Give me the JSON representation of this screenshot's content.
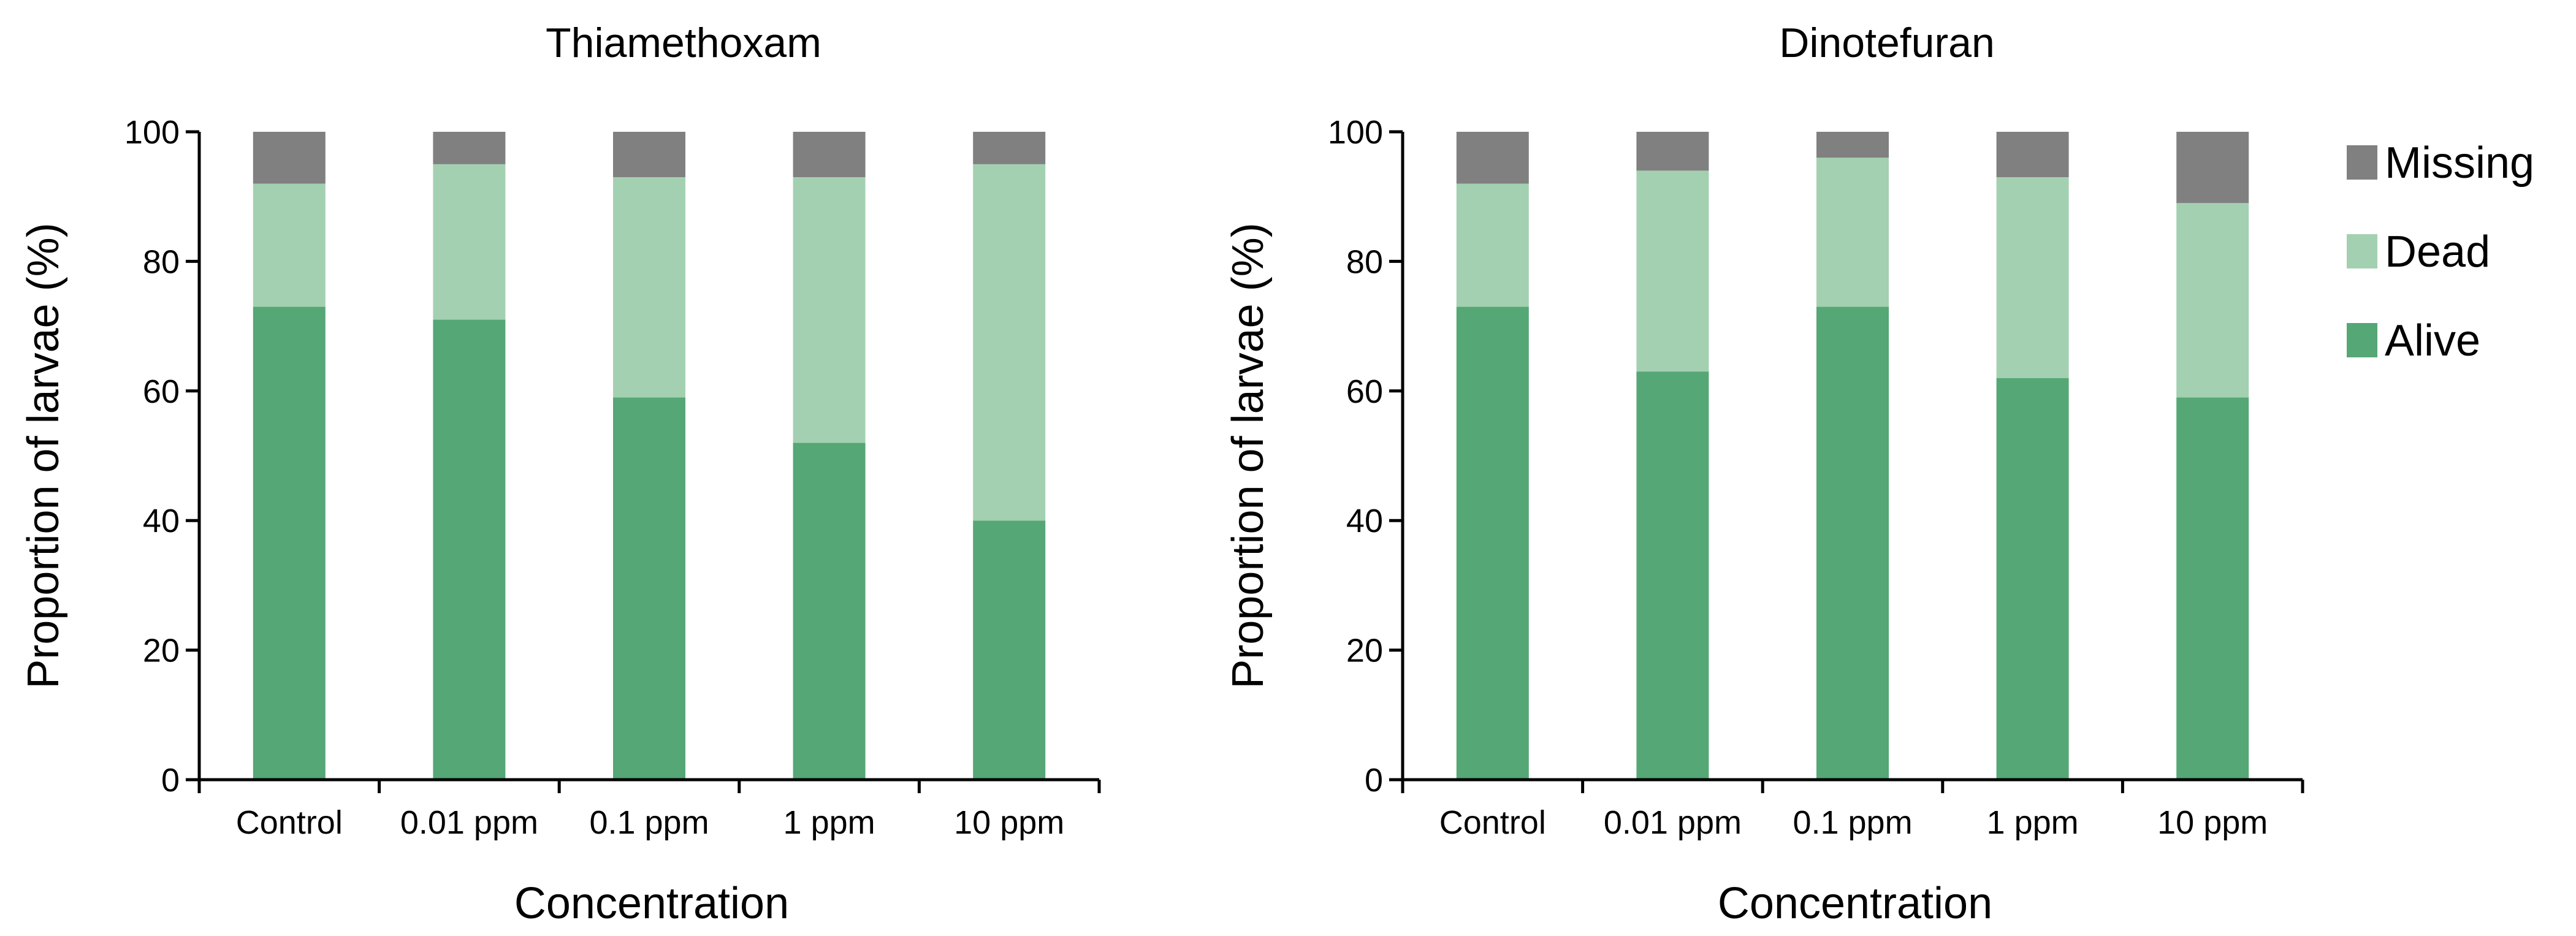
{
  "chart_data": [
    {
      "type": "bar",
      "stacked": true,
      "title": "Thiamethoxam",
      "xlabel": "Concentration",
      "ylabel": "Proportion of larvae (%)",
      "ylim": [
        0,
        100
      ],
      "yticks": [
        0,
        20,
        40,
        60,
        80,
        100
      ],
      "categories": [
        "Control",
        "0.01 ppm",
        "0.1 ppm",
        "1 ppm",
        "10 ppm"
      ],
      "series": [
        {
          "name": "Alive",
          "values": [
            73,
            71,
            59,
            52,
            40
          ]
        },
        {
          "name": "Dead",
          "values": [
            19,
            24,
            34,
            41,
            55
          ]
        },
        {
          "name": "Missing",
          "values": [
            8,
            5,
            7,
            7,
            5
          ]
        }
      ]
    },
    {
      "type": "bar",
      "stacked": true,
      "title": "Dinotefuran",
      "xlabel": "Concentration",
      "ylabel": "Proportion of larvae (%)",
      "ylim": [
        0,
        100
      ],
      "yticks": [
        0,
        20,
        40,
        60,
        80,
        100
      ],
      "categories": [
        "Control",
        "0.01 ppm",
        "0.1 ppm",
        "1 ppm",
        "10 ppm"
      ],
      "series": [
        {
          "name": "Alive",
          "values": [
            73,
            63,
            73,
            62,
            59
          ]
        },
        {
          "name": "Dead",
          "values": [
            19,
            31,
            23,
            31,
            30
          ]
        },
        {
          "name": "Missing",
          "values": [
            8,
            6,
            4,
            7,
            11
          ]
        }
      ]
    }
  ],
  "legend": {
    "position": "right",
    "items": [
      {
        "name": "Missing",
        "color": "#808080"
      },
      {
        "name": "Dead",
        "color": "#a3d0b1"
      },
      {
        "name": "Alive",
        "color": "#55a776"
      }
    ]
  },
  "colors": {
    "Alive": "#55a776",
    "Dead": "#a3d0b1",
    "Missing": "#808080",
    "axis": "#000000"
  }
}
